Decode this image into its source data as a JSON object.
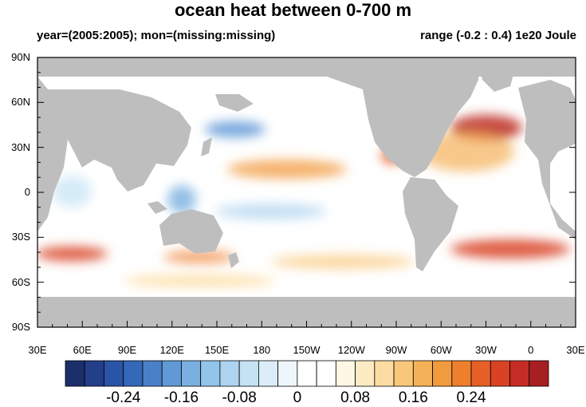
{
  "map": {
    "title": "ocean heat between 0-700 m",
    "subtitle_left": "year=(2005:2005); mon=(missing:missing)",
    "subtitle_right": "range (-0.2 : 0.4) 1e20 Joule",
    "lat_labels": [
      "90N",
      "60N",
      "30N",
      "0",
      "30S",
      "60S",
      "90S"
    ],
    "lon_labels": [
      "30E",
      "60E",
      "90E",
      "120E",
      "150E",
      "180",
      "150W",
      "120W",
      "90W",
      "60W",
      "30W",
      "0",
      "30E"
    ],
    "land_color": "#bebebe"
  },
  "colorbar": {
    "labels": [
      "-0.24",
      "-0.16",
      "-0.08",
      "0",
      "0.08",
      "0.16",
      "0.24"
    ],
    "colors": [
      "#1b2f6b",
      "#233f8a",
      "#2a54a5",
      "#3468b8",
      "#4a80c7",
      "#5f99d6",
      "#7ab0e0",
      "#93c4ea",
      "#add3f0",
      "#c5e2f5",
      "#dcedf9",
      "#eef6fc",
      "#ffffff",
      "#ffffff",
      "#fff7e6",
      "#fdebc4",
      "#fcdca0",
      "#f9c77a",
      "#f5b158",
      "#f29a3e",
      "#ee7f2d",
      "#e66027",
      "#d94224",
      "#c52c25",
      "#a81f22"
    ]
  }
}
